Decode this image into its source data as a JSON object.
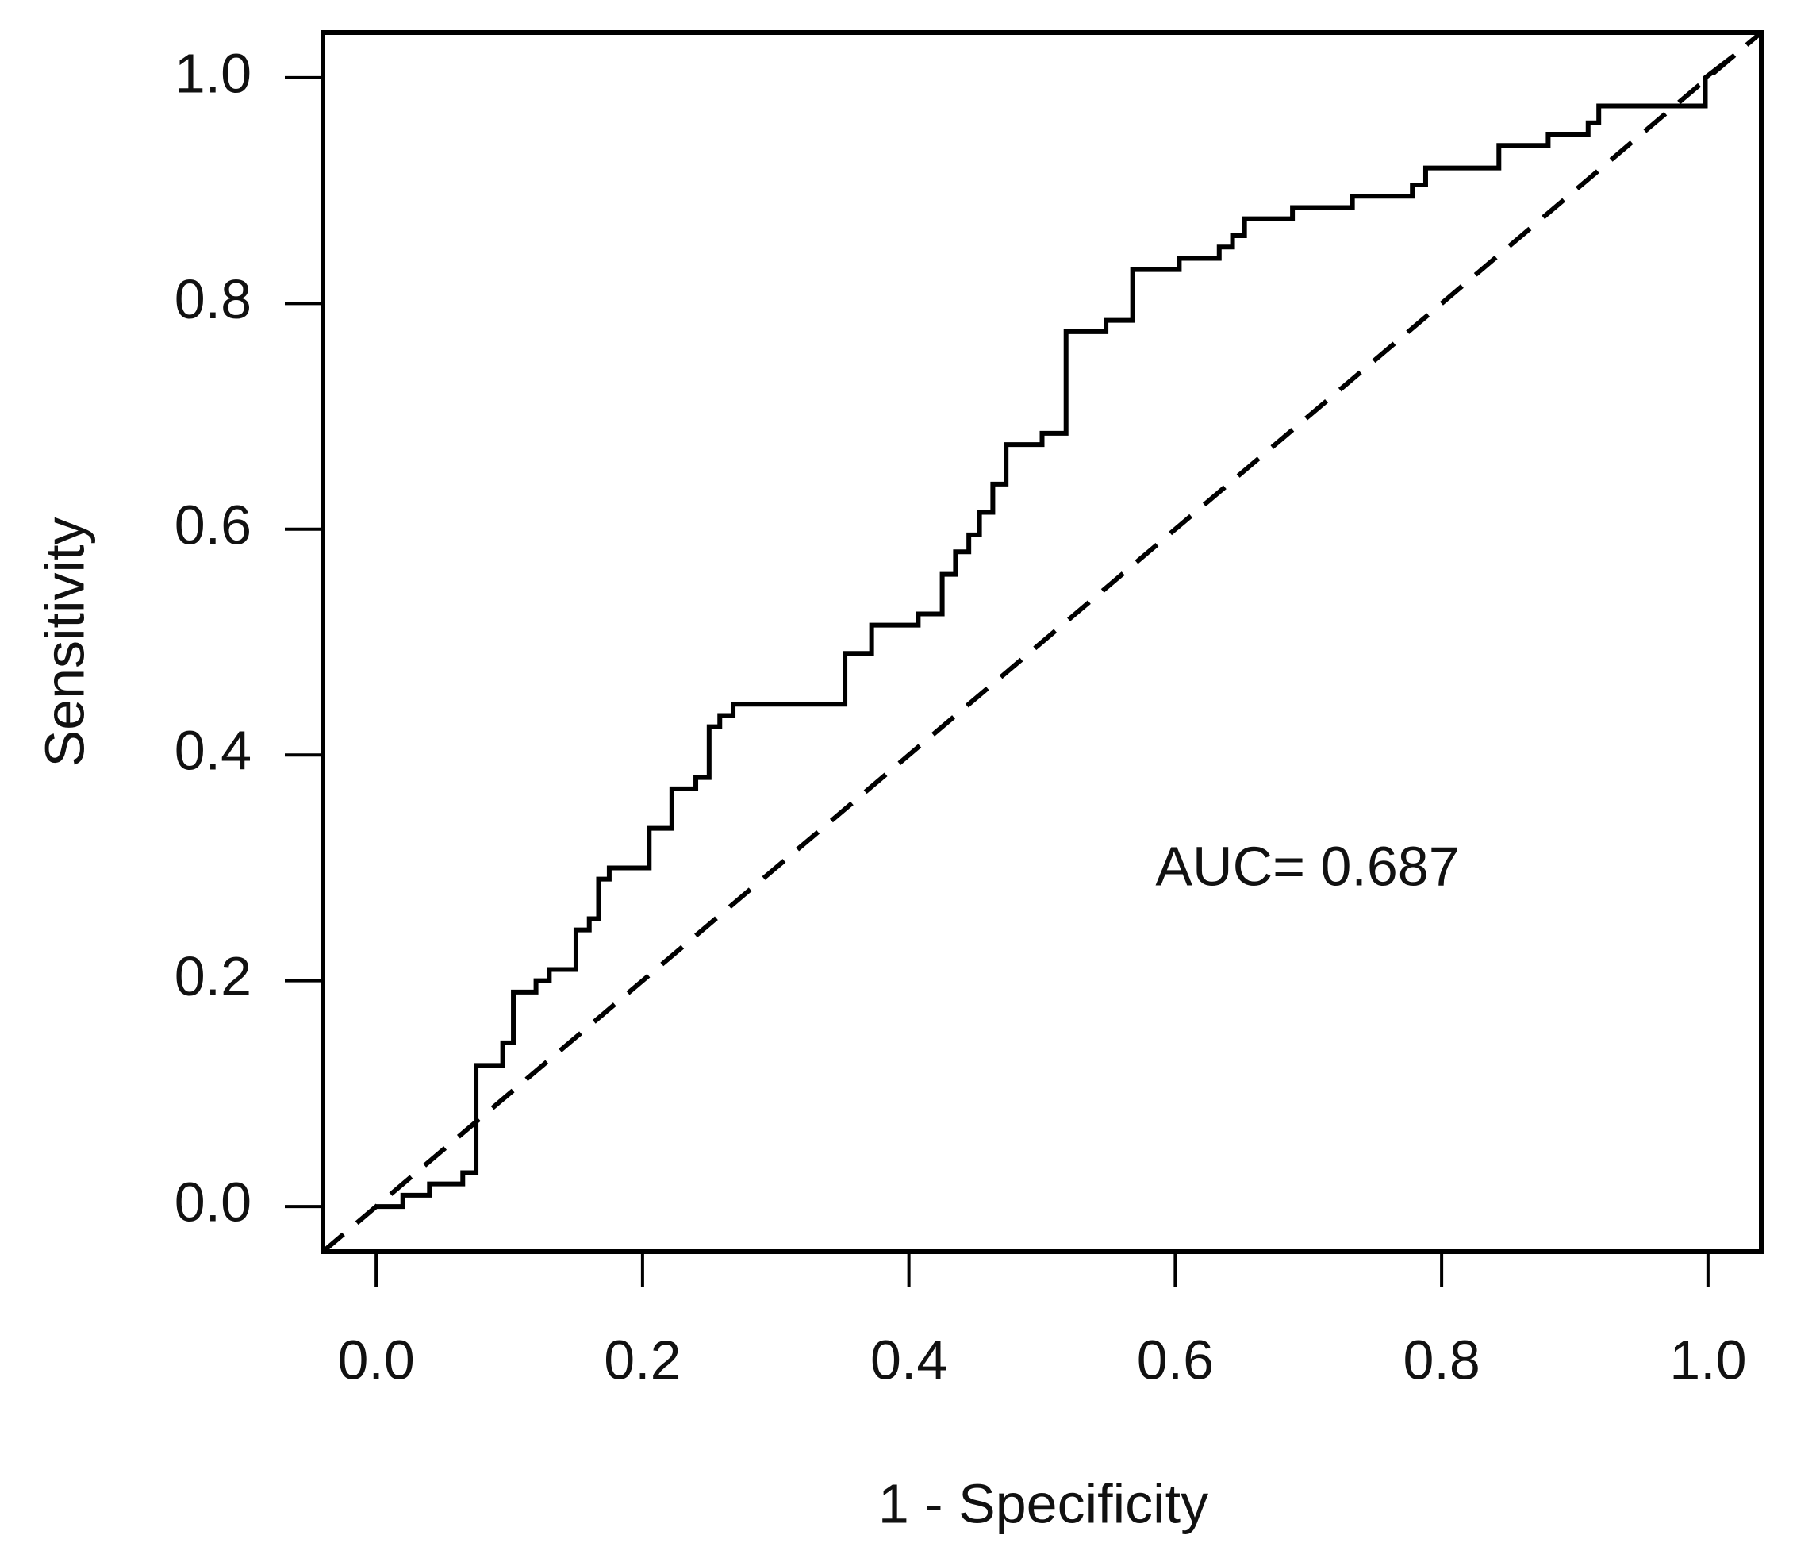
{
  "chart_data": {
    "type": "line",
    "xlabel": "1 - Specificity",
    "ylabel": "Sensitivity",
    "annotation": "AUC= 0.687",
    "xlim": [
      -0.04,
      1.04
    ],
    "ylim": [
      -0.04,
      1.04
    ],
    "xticks": [
      {
        "value": 0,
        "label": "0.0"
      },
      0.2,
      0.4,
      0.6,
      0.8,
      {
        "value": 1,
        "label": "1.0"
      }
    ],
    "yticks": [
      {
        "value": 0,
        "label": "0.0"
      },
      0.2,
      0.4,
      0.6,
      0.8,
      {
        "value": 1,
        "label": "1.0"
      }
    ],
    "grid": false,
    "reference_diagonal": true,
    "series": [
      {
        "color": "#000000",
        "x": [
          0,
          0.02,
          0.02,
          0.04,
          0.04,
          0.065,
          0.065,
          0.075,
          0.075,
          0.095,
          0.095,
          0.103,
          0.103,
          0.12,
          0.12,
          0.13,
          0.13,
          0.15,
          0.15,
          0.16,
          0.16,
          0.167,
          0.167,
          0.175,
          0.175,
          0.205,
          0.205,
          0.222,
          0.222,
          0.24,
          0.24,
          0.25,
          0.25,
          0.258,
          0.258,
          0.268,
          0.268,
          0.352,
          0.352,
          0.372,
          0.372,
          0.407,
          0.407,
          0.425,
          0.425,
          0.435,
          0.435,
          0.445,
          0.445,
          0.453,
          0.453,
          0.463,
          0.463,
          0.473,
          0.473,
          0.5,
          0.5,
          0.518,
          0.518,
          0.548,
          0.548,
          0.568,
          0.568,
          0.603,
          0.603,
          0.633,
          0.633,
          0.643,
          0.643,
          0.652,
          0.652,
          0.688,
          0.688,
          0.733,
          0.733,
          0.778,
          0.778,
          0.788,
          0.788,
          0.843,
          0.843,
          0.88,
          0.88,
          0.91,
          0.91,
          0.918,
          0.918,
          0.998,
          0.998,
          1.02
        ],
        "values": [
          0,
          0,
          0.01,
          0.01,
          0.02,
          0.02,
          0.03,
          0.03,
          0.125,
          0.125,
          0.145,
          0.145,
          0.19,
          0.19,
          0.2,
          0.2,
          0.21,
          0.21,
          0.245,
          0.245,
          0.255,
          0.255,
          0.29,
          0.29,
          0.3,
          0.3,
          0.335,
          0.335,
          0.37,
          0.37,
          0.38,
          0.38,
          0.425,
          0.425,
          0.435,
          0.435,
          0.445,
          0.445,
          0.49,
          0.49,
          0.515,
          0.515,
          0.525,
          0.525,
          0.56,
          0.56,
          0.58,
          0.58,
          0.595,
          0.595,
          0.615,
          0.615,
          0.64,
          0.64,
          0.675,
          0.675,
          0.685,
          0.685,
          0.775,
          0.775,
          0.785,
          0.785,
          0.83,
          0.83,
          0.84,
          0.84,
          0.85,
          0.85,
          0.86,
          0.86,
          0.875,
          0.875,
          0.885,
          0.885,
          0.895,
          0.895,
          0.905,
          0.905,
          0.92,
          0.92,
          0.94,
          0.94,
          0.95,
          0.95,
          0.96,
          0.96,
          0.975,
          0.975,
          1.0,
          1.02
        ]
      }
    ]
  }
}
